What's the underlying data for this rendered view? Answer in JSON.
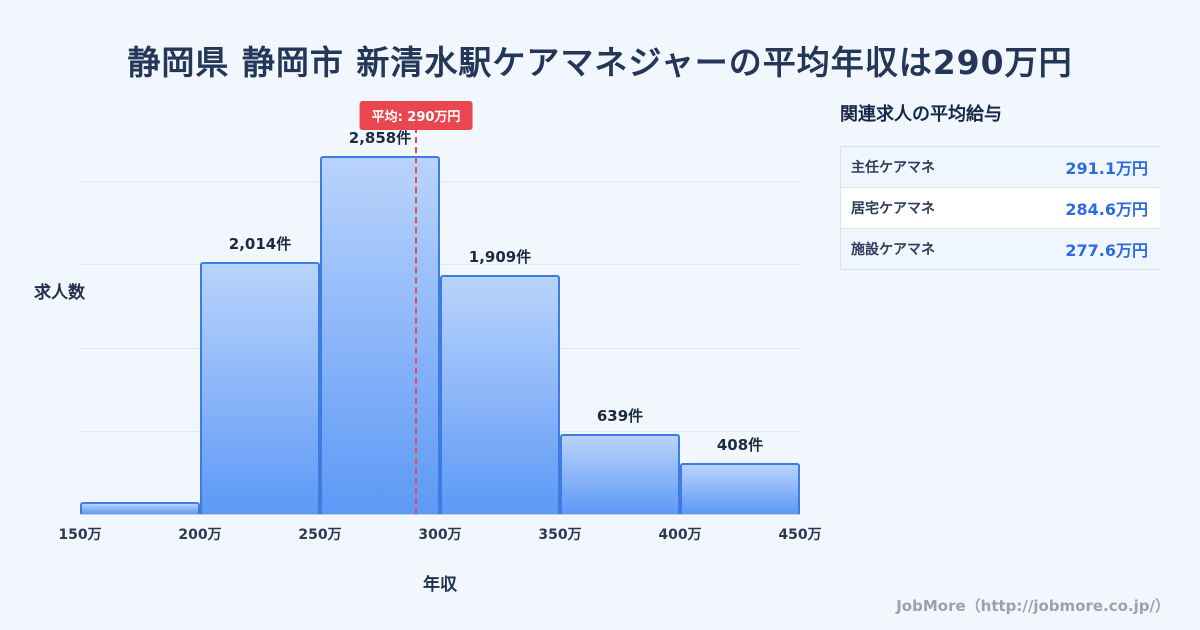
{
  "page": {
    "title": "静岡県 静岡市 新清水駅ケアマネジャーの平均年収は290万円",
    "footer": "JobMore（http://jobmore.co.jp/）"
  },
  "chart_data": {
    "type": "bar",
    "title": "静岡県 静岡市 新清水駅ケアマネジャーの平均年収は290万円",
    "xlabel": "年収",
    "ylabel": "求人数",
    "x_ticks": [
      "150万",
      "200万",
      "250万",
      "300万",
      "350万",
      "400万",
      "450万"
    ],
    "x_range": [
      150,
      450
    ],
    "ylim": [
      0,
      3340
    ],
    "grid": true,
    "legend": null,
    "bins": [
      {
        "range_start": 150,
        "range_end": 200,
        "value": 100,
        "label": ""
      },
      {
        "range_start": 200,
        "range_end": 250,
        "value": 2014,
        "label": "2,014件"
      },
      {
        "range_start": 250,
        "range_end": 300,
        "value": 2858,
        "label": "2,858件"
      },
      {
        "range_start": 300,
        "range_end": 350,
        "value": 1909,
        "label": "1,909件"
      },
      {
        "range_start": 350,
        "range_end": 400,
        "value": 639,
        "label": "639件"
      },
      {
        "range_start": 400,
        "range_end": 450,
        "value": 408,
        "label": "408件"
      }
    ],
    "average": {
      "value": 290,
      "label": "平均: 290万円"
    },
    "colors": {
      "bar_top": "#b9d4fb",
      "bar_bottom": "#5d99f6",
      "bar_border": "#3d7de2",
      "average_line": "#e64c50",
      "badge_bg": "#e8474f",
      "background": "#f2f7fd",
      "title_text": "#243759",
      "value_text": "#2e6be0"
    }
  },
  "side_panel": {
    "title": "関連求人の平均給与",
    "rows": [
      {
        "label": "主任ケアマネ",
        "value": "291.1万円"
      },
      {
        "label": "居宅ケアマネ",
        "value": "284.6万円"
      },
      {
        "label": "施設ケアマネ",
        "value": "277.6万円"
      }
    ]
  }
}
